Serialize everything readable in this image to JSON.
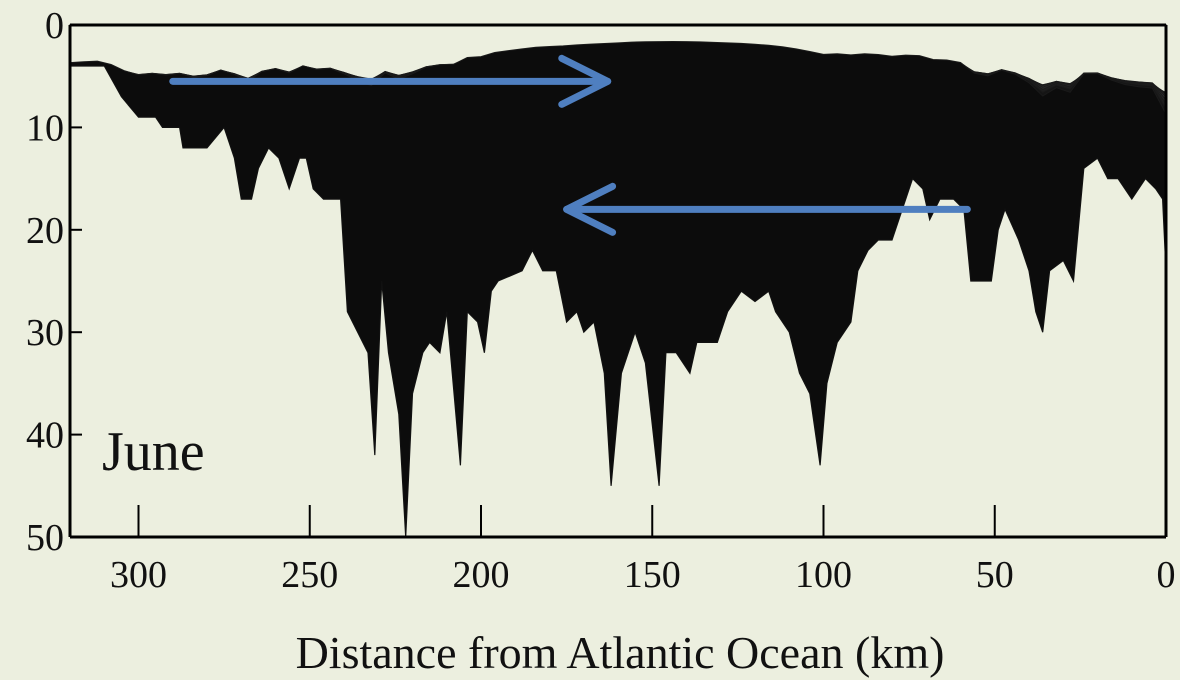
{
  "chart_data": {
    "type": "heatmap",
    "title": "",
    "xlabel": "Distance from Atlantic Ocean (km)",
    "ylabel": "",
    "panel_label": "June",
    "x_direction": "reversed",
    "xlim": [
      320,
      0
    ],
    "ylim": [
      0,
      50
    ],
    "y_direction": "downward",
    "x_ticks": [
      300,
      250,
      200,
      150,
      100,
      50,
      0
    ],
    "y_ticks": [
      0,
      10,
      20,
      30,
      40,
      50
    ],
    "grid": false,
    "legend": "none",
    "bottom_profile_km_m": [
      [
        320,
        4
      ],
      [
        310,
        4
      ],
      [
        305,
        7
      ],
      [
        300,
        9
      ],
      [
        295,
        9
      ],
      [
        293,
        10
      ],
      [
        288,
        10
      ],
      [
        287,
        12
      ],
      [
        280,
        12
      ],
      [
        275,
        10
      ],
      [
        272,
        13
      ],
      [
        270,
        17
      ],
      [
        267,
        17
      ],
      [
        265,
        14
      ],
      [
        262,
        12
      ],
      [
        259,
        13
      ],
      [
        256,
        16
      ],
      [
        253,
        13
      ],
      [
        251,
        13
      ],
      [
        249,
        16
      ],
      [
        246,
        17
      ],
      [
        241,
        17
      ],
      [
        239,
        28
      ],
      [
        236,
        30
      ],
      [
        233,
        32
      ],
      [
        231,
        42
      ],
      [
        229,
        25
      ],
      [
        227,
        32
      ],
      [
        224,
        38
      ],
      [
        222,
        50
      ],
      [
        220,
        36
      ],
      [
        217,
        32
      ],
      [
        215,
        31
      ],
      [
        212,
        32
      ],
      [
        210,
        28
      ],
      [
        206,
        43
      ],
      [
        204,
        28
      ],
      [
        201,
        29
      ],
      [
        199,
        32
      ],
      [
        197,
        26
      ],
      [
        195,
        25
      ],
      [
        188,
        24
      ],
      [
        185,
        22
      ],
      [
        182,
        24
      ],
      [
        178,
        24
      ],
      [
        175,
        29
      ],
      [
        172,
        28
      ],
      [
        170,
        30
      ],
      [
        167,
        29
      ],
      [
        164,
        34
      ],
      [
        162,
        45
      ],
      [
        159,
        34
      ],
      [
        155,
        30
      ],
      [
        152,
        33
      ],
      [
        148,
        45
      ],
      [
        146,
        32
      ],
      [
        143,
        32
      ],
      [
        139,
        34
      ],
      [
        137,
        31
      ],
      [
        131,
        31
      ],
      [
        128,
        28
      ],
      [
        124,
        26
      ],
      [
        120,
        27
      ],
      [
        116,
        26
      ],
      [
        114,
        28
      ],
      [
        110,
        30
      ],
      [
        107,
        34
      ],
      [
        104,
        36
      ],
      [
        101,
        43
      ],
      [
        99,
        35
      ],
      [
        96,
        31
      ],
      [
        92,
        29
      ],
      [
        90,
        24
      ],
      [
        87,
        22
      ],
      [
        84,
        21
      ],
      [
        80,
        21
      ],
      [
        77,
        18
      ],
      [
        74,
        15
      ],
      [
        71,
        16
      ],
      [
        69,
        19
      ],
      [
        66,
        17
      ],
      [
        62,
        17
      ],
      [
        59,
        18
      ],
      [
        57,
        25
      ],
      [
        51,
        25
      ],
      [
        49,
        20
      ],
      [
        47,
        18
      ],
      [
        43,
        21
      ],
      [
        40,
        24
      ],
      [
        38,
        28
      ],
      [
        36,
        30
      ],
      [
        34,
        24
      ],
      [
        30,
        23
      ],
      [
        27,
        25
      ],
      [
        24,
        14
      ],
      [
        20,
        13
      ],
      [
        17,
        15
      ],
      [
        14,
        15
      ],
      [
        12,
        16
      ],
      [
        10,
        17
      ],
      [
        6,
        15
      ],
      [
        3,
        16
      ],
      [
        1,
        17
      ],
      [
        0,
        24
      ]
    ],
    "contours": {
      "count": 15,
      "depth_deep_m": 1,
      "depth_shallow_m": 9,
      "gray_shallow": "#949494",
      "gray_deep": "#0C0C0C"
    },
    "annotations": [
      {
        "type": "arrow",
        "direction": "landward",
        "from": [
          290,
          5.5
        ],
        "to": [
          163,
          5.5
        ],
        "color": "#4F7FC0"
      },
      {
        "type": "arrow",
        "direction": "seaward",
        "from": [
          58,
          18
        ],
        "to": [
          175,
          18
        ],
        "color": "#4F7FC0"
      }
    ],
    "colors": {
      "background": "#ECEFDF",
      "arrow": "#4F7FC0",
      "axis": "#000000"
    }
  }
}
